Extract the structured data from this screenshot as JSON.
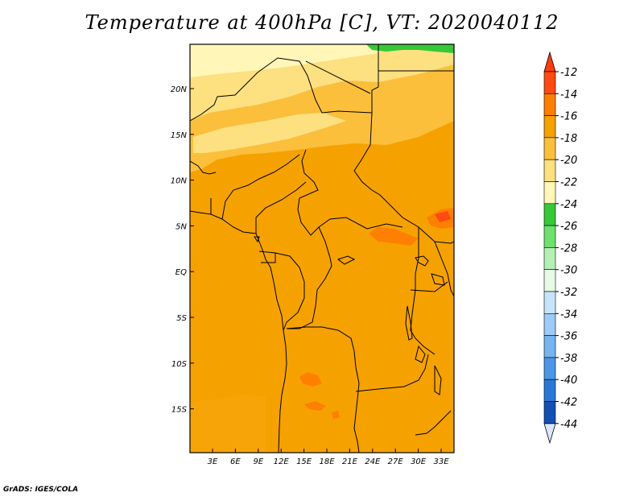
{
  "title": "Temperature at 400hPa [C], VT: 2020040112",
  "credit": "GrADS: IGES/COLA",
  "map": {
    "lon_ticks": [
      "3E",
      "6E",
      "9E",
      "12E",
      "15E",
      "18E",
      "21E",
      "24E",
      "27E",
      "30E",
      "33E"
    ],
    "lat_ticks": [
      "20N",
      "15N",
      "10N",
      "5N",
      "EQ",
      "5S",
      "10S",
      "15S"
    ],
    "background_color": "#f5a100"
  },
  "colorbar": {
    "labels": [
      "-12",
      "-14",
      "-16",
      "-18",
      "-20",
      "-22",
      "-24",
      "-26",
      "-28",
      "-30",
      "-32",
      "-34",
      "-36",
      "-38",
      "-40",
      "-42",
      "-44"
    ],
    "colors": [
      "#ff4a12",
      "#ff7f00",
      "#f5a100",
      "#fbbf3c",
      "#fde07f",
      "#fff6b8",
      "#37c837",
      "#6ee06e",
      "#b4f0b4",
      "#e6fae6",
      "#c8e4fa",
      "#9ccbf5",
      "#78b4f0",
      "#4b96e6",
      "#2878d7",
      "#1450b4",
      "#0a1e8c"
    ],
    "top_triangle_color": "#ff3c0a",
    "bottom_triangle_color": "#dce6ff"
  }
}
